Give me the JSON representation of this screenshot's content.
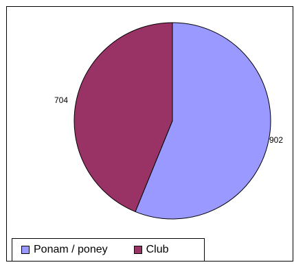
{
  "chart_data": {
    "type": "pie",
    "title": "",
    "categories": [
      "Ponam / poney",
      "Club"
    ],
    "values": [
      902,
      704
    ],
    "data_labels": [
      "902",
      "704"
    ],
    "colors": [
      "#9999FF",
      "#993366"
    ],
    "start_angle_deg": 0,
    "direction": "clockwise",
    "legend": {
      "placement": "bottom-left",
      "items": [
        {
          "label": "Ponam / poney",
          "color": "#9999FF"
        },
        {
          "label": "Club",
          "color": "#993366"
        }
      ]
    }
  }
}
